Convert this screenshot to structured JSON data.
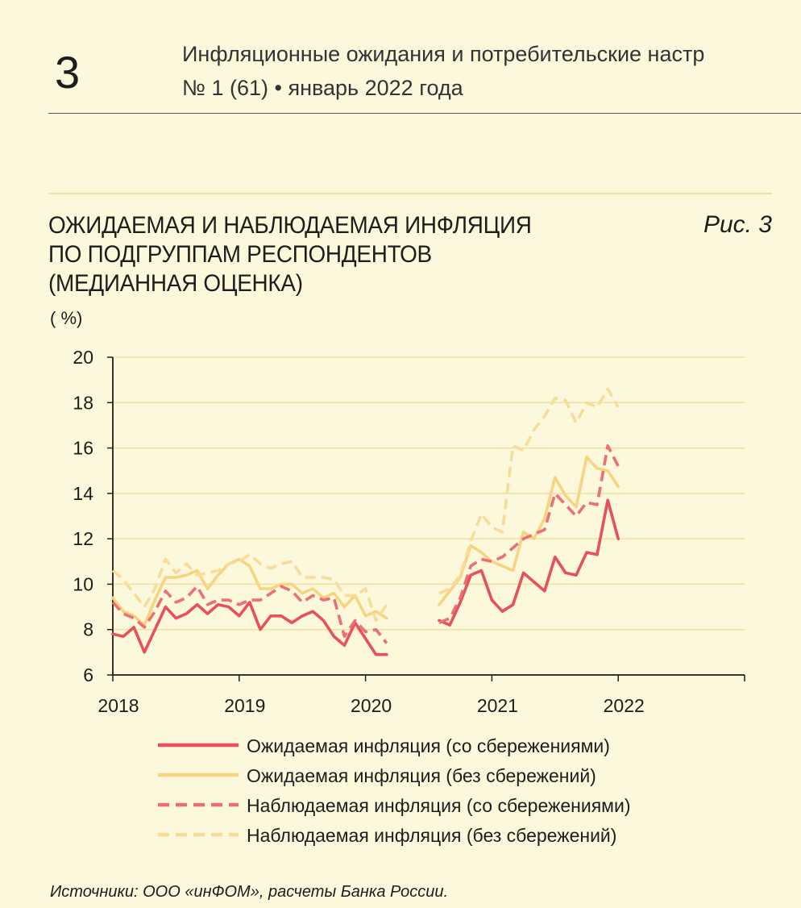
{
  "header": {
    "page_number": "3",
    "publication_title": "Инфляционные ожидания и потребительские настр",
    "issue": "№ 1 (61) • январь 2022 года"
  },
  "figure": {
    "title_lines": [
      "ОЖИДАЕМАЯ И НАБЛЮДАЕМАЯ ИНФЛЯЦИЯ",
      "ПО ПОДГРУППАМ РЕСПОНДЕНТОВ",
      "(МЕДИАННАЯ ОЦЕНКА)"
    ],
    "number": "Рис. 3",
    "unit": "( %)",
    "source": "Источники: ООО «инФОМ», расчеты Банка России."
  },
  "colors": {
    "red": "#e8505b",
    "red_light": "#ec6f74",
    "yellow": "#f7d580",
    "yellow_light": "#f8dc9a",
    "grid": "#f0e0a0",
    "axis": "#1d1d1b"
  },
  "chart_data": {
    "type": "line",
    "ylim": [
      6,
      20
    ],
    "yticks": [
      6,
      8,
      10,
      12,
      14,
      16,
      18,
      20
    ],
    "xlim": [
      2018,
      2023
    ],
    "xticks": [
      2018,
      2019,
      2020,
      2021,
      2022
    ],
    "grid": true,
    "legend_position": "bottom",
    "series": [
      {
        "name": "Ожидаемая инфляция (со сбережениями)",
        "style": "solid",
        "color": "#e8505b",
        "segments": [
          [
            [
              2018.0,
              7.8
            ],
            [
              2018.083,
              7.7
            ],
            [
              2018.167,
              8.1
            ],
            [
              2018.25,
              7.0
            ],
            [
              2018.417,
              9.0
            ],
            [
              2018.5,
              8.5
            ],
            [
              2018.583,
              8.7
            ],
            [
              2018.667,
              9.1
            ],
            [
              2018.75,
              8.7
            ],
            [
              2018.833,
              9.1
            ],
            [
              2018.917,
              9.0
            ],
            [
              2019.0,
              8.6
            ],
            [
              2019.083,
              9.2
            ],
            [
              2019.167,
              8.0
            ],
            [
              2019.25,
              8.6
            ],
            [
              2019.333,
              8.6
            ],
            [
              2019.417,
              8.3
            ],
            [
              2019.5,
              8.6
            ],
            [
              2019.583,
              8.8
            ],
            [
              2019.667,
              8.4
            ],
            [
              2019.75,
              7.7
            ],
            [
              2019.833,
              7.3
            ],
            [
              2019.917,
              8.3
            ],
            [
              2020.0,
              7.6
            ],
            [
              2020.083,
              6.9
            ],
            [
              2020.167,
              6.9
            ]
          ],
          [
            [
              2020.583,
              8.4
            ],
            [
              2020.667,
              8.2
            ],
            [
              2020.75,
              9.2
            ],
            [
              2020.833,
              10.4
            ],
            [
              2020.917,
              10.6
            ],
            [
              2021.0,
              9.3
            ],
            [
              2021.083,
              8.8
            ],
            [
              2021.167,
              9.1
            ],
            [
              2021.25,
              10.5
            ],
            [
              2021.333,
              10.1
            ],
            [
              2021.417,
              9.7
            ],
            [
              2021.5,
              11.2
            ],
            [
              2021.583,
              10.5
            ],
            [
              2021.667,
              10.4
            ],
            [
              2021.75,
              11.4
            ],
            [
              2021.833,
              11.3
            ],
            [
              2021.917,
              13.7
            ],
            [
              2022.0,
              12.0
            ]
          ]
        ]
      },
      {
        "name": "Ожидаемая инфляция (без сбережений)",
        "style": "solid",
        "color": "#f7d580",
        "segments": [
          [
            [
              2018.0,
              9.4
            ],
            [
              2018.083,
              8.8
            ],
            [
              2018.167,
              8.6
            ],
            [
              2018.25,
              8.2
            ],
            [
              2018.333,
              9.3
            ],
            [
              2018.417,
              10.3
            ],
            [
              2018.5,
              10.3
            ],
            [
              2018.583,
              10.4
            ],
            [
              2018.667,
              10.6
            ],
            [
              2018.75,
              9.8
            ],
            [
              2018.833,
              10.4
            ],
            [
              2018.917,
              10.9
            ],
            [
              2019.0,
              11.1
            ],
            [
              2019.083,
              10.8
            ],
            [
              2019.167,
              9.8
            ],
            [
              2019.25,
              9.8
            ],
            [
              2019.333,
              10.0
            ],
            [
              2019.417,
              10.0
            ],
            [
              2019.5,
              9.6
            ],
            [
              2019.583,
              9.8
            ],
            [
              2019.667,
              9.4
            ],
            [
              2019.75,
              9.6
            ],
            [
              2019.833,
              9.0
            ],
            [
              2019.917,
              9.5
            ],
            [
              2020.0,
              8.6
            ],
            [
              2020.083,
              8.8
            ],
            [
              2020.167,
              8.5
            ]
          ],
          [
            [
              2020.583,
              9.1
            ],
            [
              2020.667,
              9.7
            ],
            [
              2020.75,
              10.3
            ],
            [
              2020.833,
              11.7
            ],
            [
              2020.917,
              11.4
            ],
            [
              2021.0,
              11.0
            ],
            [
              2021.083,
              10.8
            ],
            [
              2021.167,
              10.6
            ],
            [
              2021.25,
              12.3
            ],
            [
              2021.333,
              12.0
            ],
            [
              2021.417,
              12.9
            ],
            [
              2021.5,
              14.7
            ],
            [
              2021.583,
              13.9
            ],
            [
              2021.667,
              13.4
            ],
            [
              2021.75,
              15.6
            ],
            [
              2021.833,
              15.1
            ],
            [
              2021.917,
              15.0
            ],
            [
              2022.0,
              14.3
            ]
          ]
        ]
      },
      {
        "name": "Наблюдаемая инфляция (со сбережениями)",
        "style": "dashed",
        "color": "#ec6f74",
        "segments": [
          [
            [
              2018.0,
              9.2
            ],
            [
              2018.083,
              8.7
            ],
            [
              2018.167,
              8.5
            ],
            [
              2018.25,
              8.1
            ],
            [
              2018.333,
              8.8
            ],
            [
              2018.417,
              9.7
            ],
            [
              2018.5,
              9.2
            ],
            [
              2018.583,
              9.4
            ],
            [
              2018.667,
              9.9
            ],
            [
              2018.75,
              9.1
            ],
            [
              2018.833,
              9.3
            ],
            [
              2018.917,
              9.3
            ],
            [
              2019.0,
              9.1
            ],
            [
              2019.083,
              9.3
            ],
            [
              2019.167,
              9.3
            ],
            [
              2019.25,
              9.6
            ],
            [
              2019.333,
              9.9
            ],
            [
              2019.417,
              9.7
            ],
            [
              2019.5,
              9.2
            ],
            [
              2019.583,
              9.5
            ],
            [
              2019.667,
              9.3
            ],
            [
              2019.75,
              9.4
            ],
            [
              2019.833,
              7.7
            ],
            [
              2019.917,
              8.4
            ],
            [
              2020.0,
              7.9
            ],
            [
              2020.083,
              8.0
            ],
            [
              2020.167,
              7.4
            ]
          ],
          [
            [
              2020.583,
              8.3
            ],
            [
              2020.667,
              8.5
            ],
            [
              2020.75,
              9.4
            ],
            [
              2020.833,
              10.8
            ],
            [
              2020.917,
              11.1
            ],
            [
              2021.0,
              11.0
            ],
            [
              2021.083,
              11.2
            ],
            [
              2021.167,
              11.6
            ],
            [
              2021.25,
              12.0
            ],
            [
              2021.333,
              12.2
            ],
            [
              2021.417,
              12.4
            ],
            [
              2021.5,
              14.0
            ],
            [
              2021.583,
              13.5
            ],
            [
              2021.667,
              13.0
            ],
            [
              2021.75,
              13.6
            ],
            [
              2021.833,
              13.5
            ],
            [
              2021.917,
              16.1
            ],
            [
              2022.0,
              15.2
            ]
          ]
        ]
      },
      {
        "name": "Наблюдаемая инфляция (без сбережений)",
        "style": "dashed",
        "color": "#f8dc9a",
        "segments": [
          [
            [
              2018.0,
              10.6
            ],
            [
              2018.083,
              10.2
            ],
            [
              2018.167,
              9.6
            ],
            [
              2018.25,
              9.0
            ],
            [
              2018.333,
              9.8
            ],
            [
              2018.417,
              11.1
            ],
            [
              2018.5,
              10.5
            ],
            [
              2018.583,
              10.9
            ],
            [
              2018.667,
              10.4
            ],
            [
              2018.75,
              10.5
            ],
            [
              2018.833,
              10.6
            ],
            [
              2018.917,
              10.9
            ],
            [
              2019.0,
              11.0
            ],
            [
              2019.083,
              11.3
            ],
            [
              2019.167,
              10.9
            ],
            [
              2019.25,
              10.7
            ],
            [
              2019.333,
              10.9
            ],
            [
              2019.417,
              11.0
            ],
            [
              2019.5,
              10.3
            ],
            [
              2019.583,
              10.3
            ],
            [
              2019.667,
              10.3
            ],
            [
              2019.75,
              10.2
            ],
            [
              2019.833,
              9.5
            ],
            [
              2019.917,
              9.5
            ],
            [
              2020.0,
              9.8
            ],
            [
              2020.083,
              8.4
            ],
            [
              2020.167,
              9.1
            ]
          ],
          [
            [
              2020.583,
              9.6
            ],
            [
              2020.667,
              9.8
            ],
            [
              2020.75,
              10.4
            ],
            [
              2020.833,
              11.9
            ],
            [
              2020.917,
              13.1
            ],
            [
              2021.0,
              12.5
            ],
            [
              2021.083,
              12.3
            ],
            [
              2021.167,
              16.1
            ],
            [
              2021.25,
              15.9
            ],
            [
              2021.333,
              16.8
            ],
            [
              2021.417,
              17.4
            ],
            [
              2021.5,
              18.2
            ],
            [
              2021.583,
              18.1
            ],
            [
              2021.667,
              17.1
            ],
            [
              2021.75,
              18.0
            ],
            [
              2021.833,
              17.8
            ],
            [
              2021.917,
              18.6
            ],
            [
              2022.0,
              17.8
            ]
          ]
        ]
      }
    ]
  }
}
